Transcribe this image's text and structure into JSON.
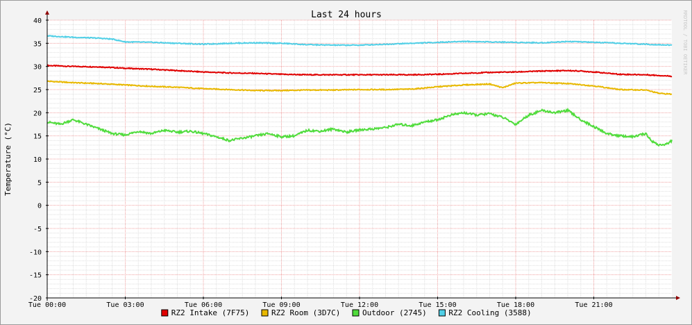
{
  "chart_data": {
    "type": "line",
    "title": "Last 24 hours",
    "ylabel": "Temperature (°C)",
    "xlabel": "",
    "watermark": "RRDTOOL / TOBI OETIKER",
    "ylim": [
      -20,
      40
    ],
    "yticks": [
      -20,
      -15,
      -10,
      -5,
      0,
      5,
      10,
      15,
      20,
      25,
      30,
      35,
      40
    ],
    "xlim_hours": [
      0,
      24
    ],
    "xticks": [
      {
        "hour": 0,
        "label": "Tue 00:00"
      },
      {
        "hour": 3,
        "label": "Tue 03:00"
      },
      {
        "hour": 6,
        "label": "Tue 06:00"
      },
      {
        "hour": 9,
        "label": "Tue 09:00"
      },
      {
        "hour": 12,
        "label": "Tue 12:00"
      },
      {
        "hour": 15,
        "label": "Tue 15:00"
      },
      {
        "hour": 18,
        "label": "Tue 18:00"
      },
      {
        "hour": 21,
        "label": "Tue 21:00"
      }
    ],
    "grid": true,
    "legend_position": "bottom",
    "series": [
      {
        "name": "RZ2 Intake (7F75)",
        "color": "#e00000",
        "points": [
          [
            0,
            30.2
          ],
          [
            1,
            30.0
          ],
          [
            2,
            29.9
          ],
          [
            3,
            29.6
          ],
          [
            4,
            29.4
          ],
          [
            5,
            29.1
          ],
          [
            6,
            28.8
          ],
          [
            7,
            28.6
          ],
          [
            8,
            28.5
          ],
          [
            9,
            28.3
          ],
          [
            10,
            28.2
          ],
          [
            11,
            28.2
          ],
          [
            12,
            28.2
          ],
          [
            13,
            28.2
          ],
          [
            14,
            28.2
          ],
          [
            15,
            28.3
          ],
          [
            16,
            28.5
          ],
          [
            17,
            28.7
          ],
          [
            18,
            28.8
          ],
          [
            19,
            29.0
          ],
          [
            20,
            29.1
          ],
          [
            20.5,
            29.0
          ],
          [
            21,
            28.8
          ],
          [
            22,
            28.3
          ],
          [
            23,
            28.2
          ],
          [
            24,
            27.9
          ]
        ]
      },
      {
        "name": "RZ2 Room (3D7C)",
        "color": "#e8b800",
        "points": [
          [
            0,
            26.8
          ],
          [
            1,
            26.5
          ],
          [
            2,
            26.3
          ],
          [
            3,
            26.0
          ],
          [
            4,
            25.7
          ],
          [
            5,
            25.5
          ],
          [
            6,
            25.2
          ],
          [
            7,
            25.0
          ],
          [
            8,
            24.8
          ],
          [
            9,
            24.8
          ],
          [
            10,
            24.9
          ],
          [
            11,
            24.9
          ],
          [
            12,
            25.0
          ],
          [
            13,
            25.0
          ],
          [
            14,
            25.1
          ],
          [
            15,
            25.6
          ],
          [
            16,
            26.0
          ],
          [
            17,
            26.2
          ],
          [
            17.5,
            25.4
          ],
          [
            18,
            26.4
          ],
          [
            19,
            26.5
          ],
          [
            20,
            26.3
          ],
          [
            21,
            25.8
          ],
          [
            22,
            25.0
          ],
          [
            23,
            24.9
          ],
          [
            23.5,
            24.2
          ],
          [
            24,
            24.0
          ]
        ]
      },
      {
        "name": "Outdoor (2745)",
        "color": "#50dc3c",
        "points": [
          [
            0,
            18.0
          ],
          [
            0.5,
            17.5
          ],
          [
            1,
            18.5
          ],
          [
            1.5,
            17.5
          ],
          [
            2,
            16.5
          ],
          [
            2.5,
            15.5
          ],
          [
            3,
            15.2
          ],
          [
            3.5,
            16.0
          ],
          [
            4,
            15.5
          ],
          [
            4.5,
            16.2
          ],
          [
            5,
            15.8
          ],
          [
            5.5,
            16.0
          ],
          [
            6,
            15.5
          ],
          [
            6.5,
            14.8
          ],
          [
            7,
            14.0
          ],
          [
            7.5,
            14.5
          ],
          [
            8,
            15.0
          ],
          [
            8.5,
            15.5
          ],
          [
            9,
            14.8
          ],
          [
            9.5,
            15.0
          ],
          [
            10,
            16.2
          ],
          [
            10.5,
            16.0
          ],
          [
            11,
            16.5
          ],
          [
            11.5,
            15.8
          ],
          [
            12,
            16.3
          ],
          [
            12.5,
            16.5
          ],
          [
            13,
            16.8
          ],
          [
            13.5,
            17.5
          ],
          [
            14,
            17.2
          ],
          [
            14.5,
            18.0
          ],
          [
            15,
            18.5
          ],
          [
            15.5,
            19.5
          ],
          [
            16,
            20.0
          ],
          [
            16.5,
            19.5
          ],
          [
            17,
            19.8
          ],
          [
            17.5,
            19.0
          ],
          [
            18,
            17.5
          ],
          [
            18.5,
            19.5
          ],
          [
            19,
            20.5
          ],
          [
            19.5,
            20.0
          ],
          [
            20,
            20.5
          ],
          [
            20.5,
            18.5
          ],
          [
            21,
            17.0
          ],
          [
            21.5,
            15.5
          ],
          [
            22,
            15.0
          ],
          [
            22.5,
            14.8
          ],
          [
            23,
            15.5
          ],
          [
            23.2,
            14.0
          ],
          [
            23.5,
            13.0
          ],
          [
            23.8,
            13.2
          ],
          [
            24,
            14.0
          ]
        ]
      },
      {
        "name": "RZ2 Cooling (3588)",
        "color": "#50cfe6",
        "points": [
          [
            0,
            36.6
          ],
          [
            1,
            36.3
          ],
          [
            2,
            36.1
          ],
          [
            2.5,
            35.9
          ],
          [
            3,
            35.3
          ],
          [
            4,
            35.2
          ],
          [
            5,
            35.0
          ],
          [
            6,
            34.8
          ],
          [
            7,
            35.0
          ],
          [
            8,
            35.1
          ],
          [
            9,
            35.0
          ],
          [
            10,
            34.7
          ],
          [
            11,
            34.6
          ],
          [
            12,
            34.6
          ],
          [
            13,
            34.8
          ],
          [
            14,
            35.0
          ],
          [
            15,
            35.2
          ],
          [
            16,
            35.4
          ],
          [
            17,
            35.3
          ],
          [
            18,
            35.2
          ],
          [
            19,
            35.1
          ],
          [
            20,
            35.4
          ],
          [
            21,
            35.2
          ],
          [
            22,
            35.0
          ],
          [
            23,
            34.8
          ],
          [
            24,
            34.6
          ]
        ]
      }
    ]
  }
}
